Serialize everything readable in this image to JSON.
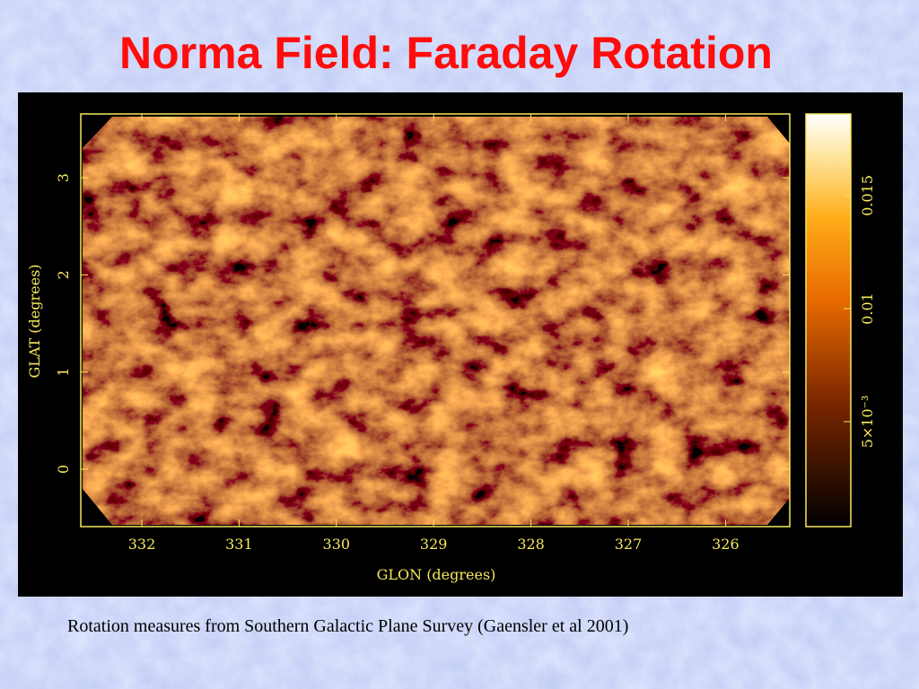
{
  "title": "Norma Field: Faraday Rotation",
  "figure": {
    "x_label": "GLON (degrees)",
    "y_label": "GLAT (degrees)",
    "xticks": [
      332,
      331,
      330,
      329,
      328,
      327,
      326
    ],
    "yticks": [
      0,
      1,
      2,
      3
    ],
    "colorbar_ticks": [
      {
        "value": 0.005,
        "label": "5×10⁻³"
      },
      0.01,
      0.015
    ]
  },
  "caption": "Rotation measures from Southern Galactic Plane Survey (Gaensler et al 2001)"
}
